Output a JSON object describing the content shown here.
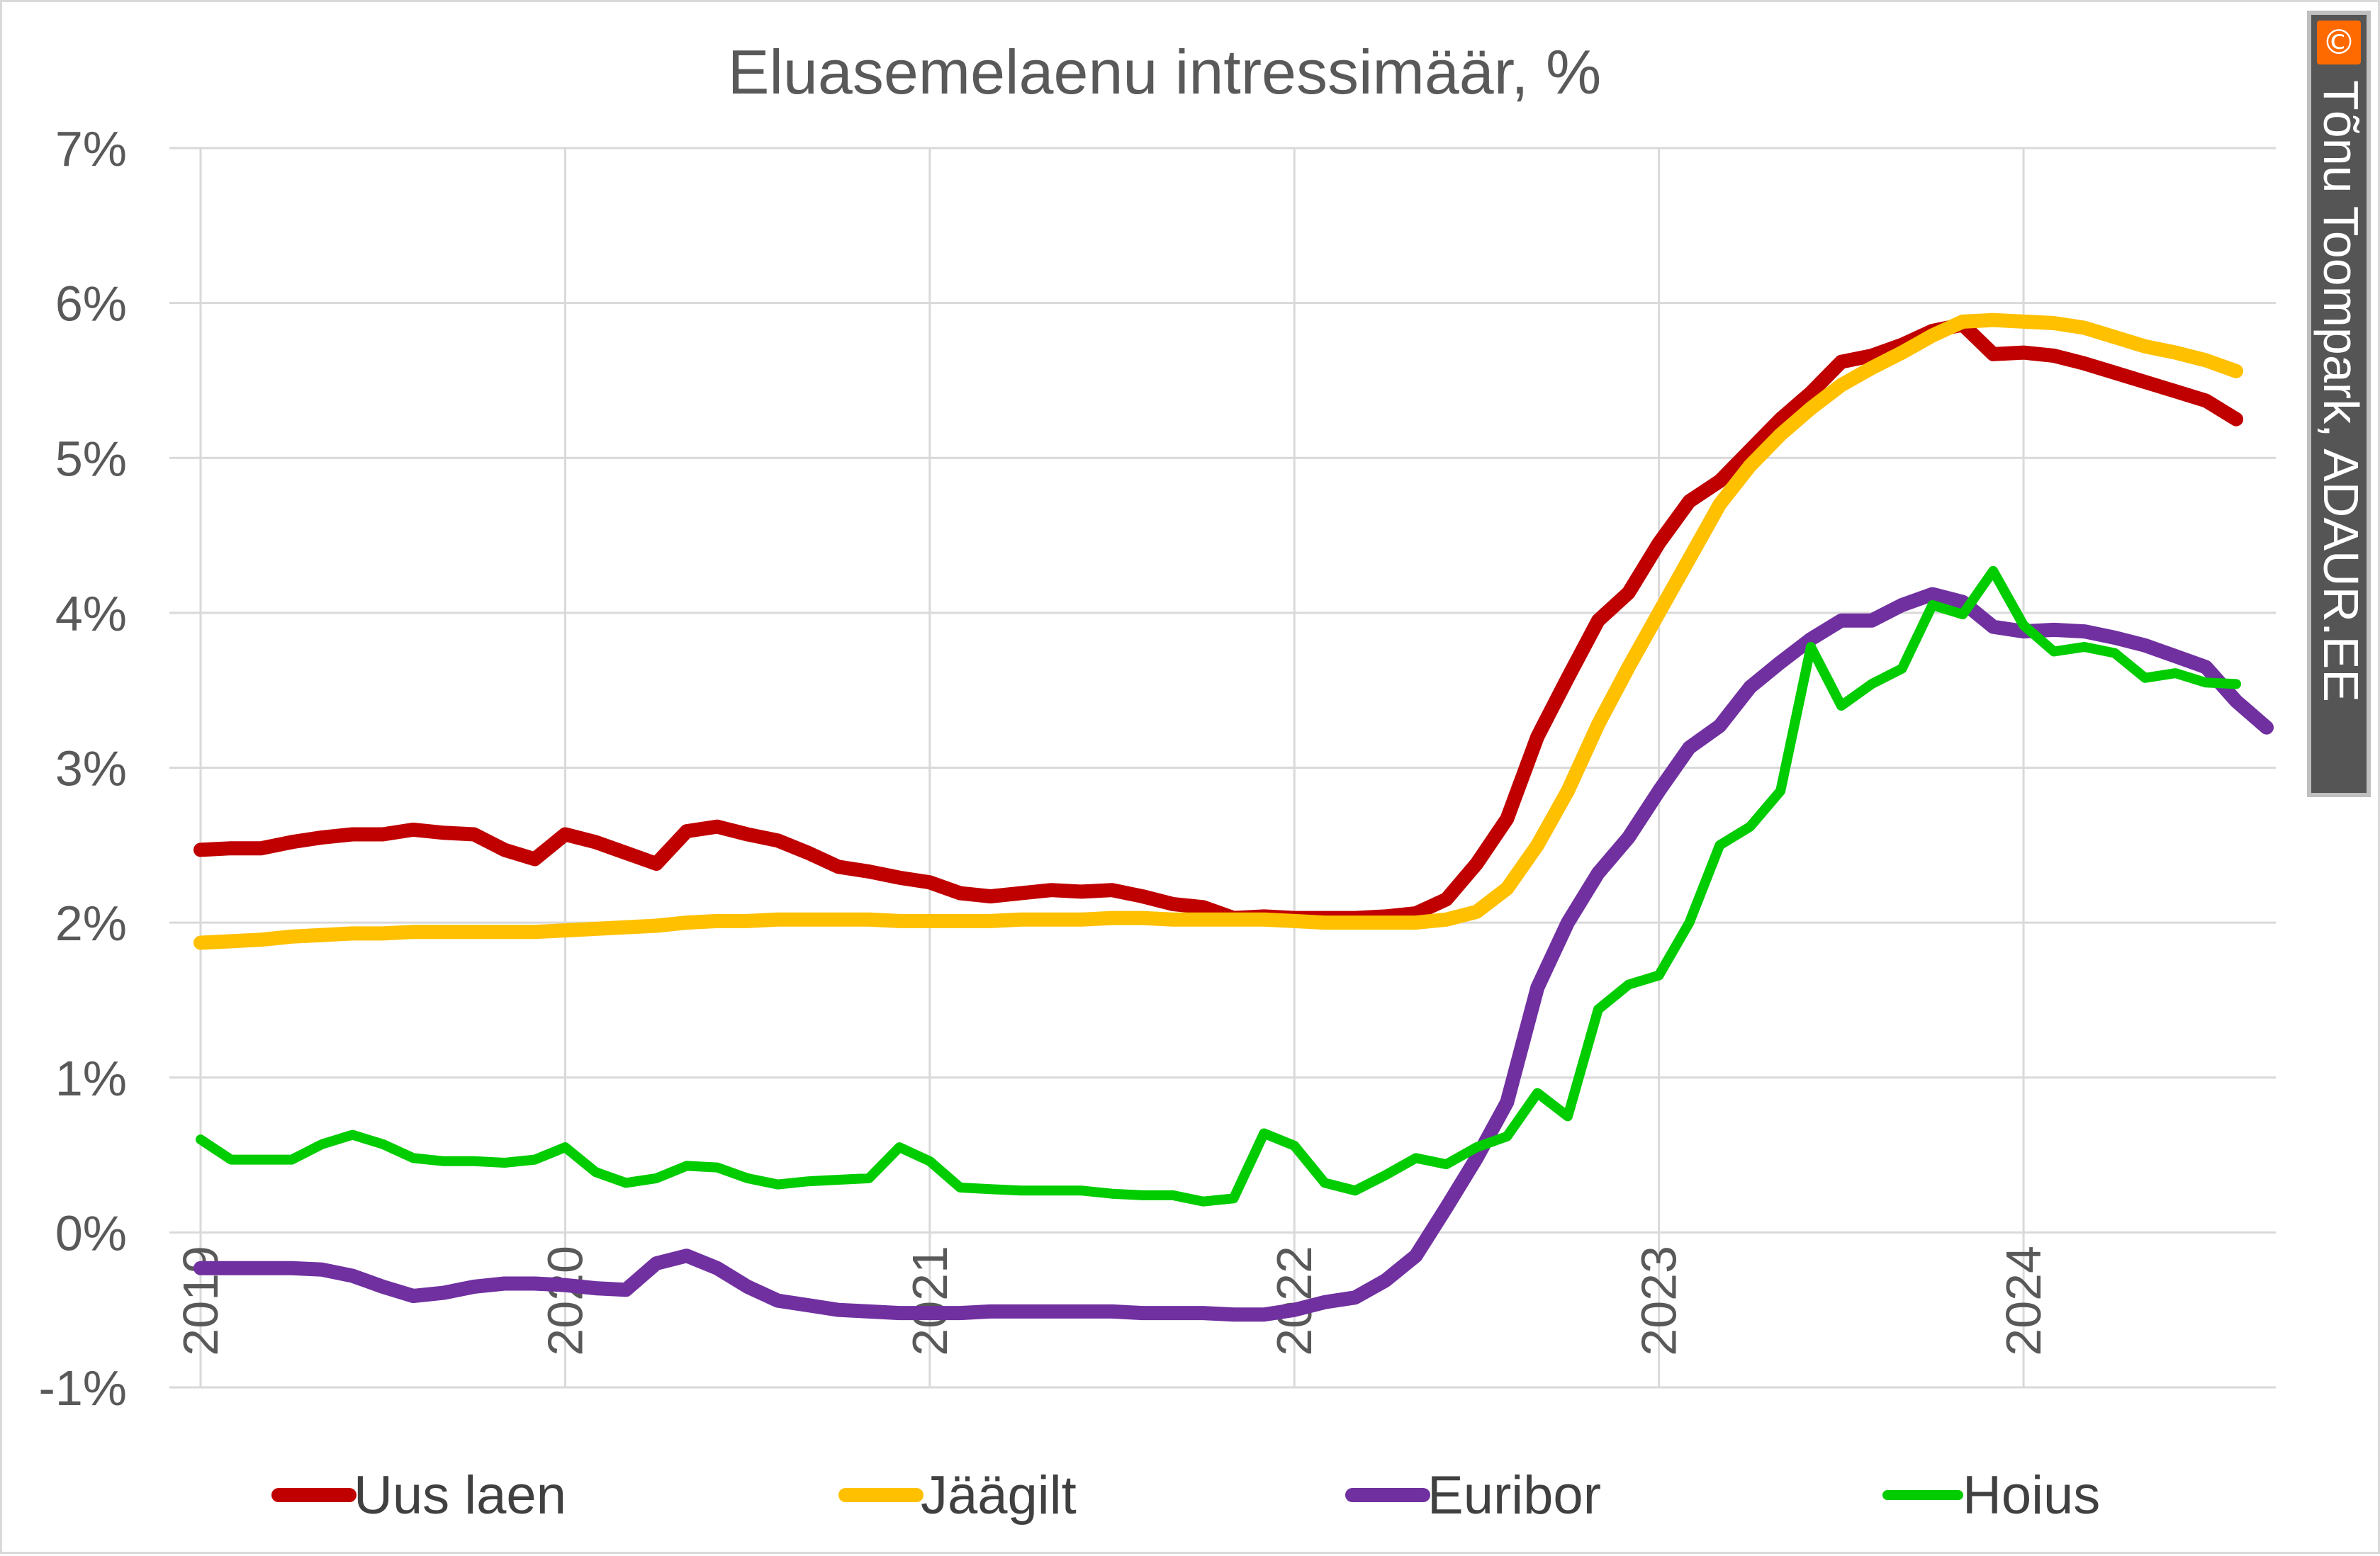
{
  "chart_data": {
    "type": "line",
    "title": "Eluasemelaenu intressimäär, %",
    "xlabel": "",
    "ylabel": "",
    "ylim": [
      -1,
      7
    ],
    "xlim": [
      "2019-01",
      "2024-09"
    ],
    "grid": true,
    "legend_position": "bottom",
    "y_ticks": [
      "7%",
      "6%",
      "5%",
      "4%",
      "3%",
      "2%",
      "1%",
      "0%",
      "-1%"
    ],
    "x_ticks": [
      "2019",
      "2020",
      "2021",
      "2022",
      "2023",
      "2024"
    ],
    "x": [
      "2019-01",
      "2019-02",
      "2019-03",
      "2019-04",
      "2019-05",
      "2019-06",
      "2019-07",
      "2019-08",
      "2019-09",
      "2019-10",
      "2019-11",
      "2019-12",
      "2020-01",
      "2020-02",
      "2020-03",
      "2020-04",
      "2020-05",
      "2020-06",
      "2020-07",
      "2020-08",
      "2020-09",
      "2020-10",
      "2020-11",
      "2020-12",
      "2021-01",
      "2021-02",
      "2021-03",
      "2021-04",
      "2021-05",
      "2021-06",
      "2021-07",
      "2021-08",
      "2021-09",
      "2021-10",
      "2021-11",
      "2021-12",
      "2022-01",
      "2022-02",
      "2022-03",
      "2022-04",
      "2022-05",
      "2022-06",
      "2022-07",
      "2022-08",
      "2022-09",
      "2022-10",
      "2022-11",
      "2022-12",
      "2023-01",
      "2023-02",
      "2023-03",
      "2023-04",
      "2023-05",
      "2023-06",
      "2023-07",
      "2023-08",
      "2023-09",
      "2023-10",
      "2023-11",
      "2023-12",
      "2024-01",
      "2024-02",
      "2024-03",
      "2024-04",
      "2024-05",
      "2024-06",
      "2024-07",
      "2024-08",
      "2024-09"
    ],
    "series": [
      {
        "name": "Uus laen",
        "color": "#c00000",
        "values": [
          2.47,
          2.48,
          2.48,
          2.52,
          2.55,
          2.57,
          2.57,
          2.6,
          2.58,
          2.57,
          2.47,
          2.41,
          2.57,
          2.52,
          2.45,
          2.38,
          2.59,
          2.62,
          2.57,
          2.53,
          2.45,
          2.36,
          2.33,
          2.29,
          2.26,
          2.19,
          2.17,
          2.19,
          2.21,
          2.2,
          2.21,
          2.17,
          2.12,
          2.1,
          2.03,
          2.04,
          2.03,
          2.03,
          2.03,
          2.04,
          2.06,
          2.15,
          2.38,
          2.67,
          3.2,
          3.58,
          3.95,
          4.13,
          4.45,
          4.72,
          4.85,
          5.05,
          5.25,
          5.42,
          5.62,
          5.66,
          5.73,
          5.82,
          5.86,
          5.67,
          5.68,
          5.66,
          5.61,
          5.55,
          5.49,
          5.43,
          5.37,
          5.25,
          null
        ]
      },
      {
        "name": "Jäägilt",
        "color": "#ffc000",
        "values": [
          1.87,
          1.88,
          1.89,
          1.91,
          1.92,
          1.93,
          1.93,
          1.94,
          1.94,
          1.94,
          1.94,
          1.94,
          1.95,
          1.96,
          1.97,
          1.98,
          2.0,
          2.01,
          2.01,
          2.02,
          2.02,
          2.02,
          2.02,
          2.01,
          2.01,
          2.01,
          2.01,
          2.02,
          2.02,
          2.02,
          2.03,
          2.03,
          2.02,
          2.02,
          2.02,
          2.02,
          2.01,
          2.0,
          2.0,
          2.0,
          2.0,
          2.02,
          2.07,
          2.22,
          2.5,
          2.85,
          3.28,
          3.65,
          4.0,
          4.35,
          4.7,
          4.95,
          5.15,
          5.32,
          5.47,
          5.58,
          5.68,
          5.79,
          5.88,
          5.89,
          5.88,
          5.87,
          5.84,
          5.78,
          5.72,
          5.68,
          5.63,
          5.56,
          null
        ]
      },
      {
        "name": "Euribor",
        "color": "#7030a0",
        "values": [
          -0.23,
          -0.23,
          -0.23,
          -0.23,
          -0.24,
          -0.28,
          -0.35,
          -0.41,
          -0.39,
          -0.35,
          -0.33,
          -0.33,
          -0.34,
          -0.36,
          -0.37,
          -0.2,
          -0.15,
          -0.23,
          -0.35,
          -0.44,
          -0.47,
          -0.5,
          -0.51,
          -0.52,
          -0.52,
          -0.52,
          -0.51,
          -0.51,
          -0.51,
          -0.51,
          -0.51,
          -0.52,
          -0.52,
          -0.52,
          -0.53,
          -0.53,
          -0.5,
          -0.45,
          -0.42,
          -0.31,
          -0.15,
          0.16,
          0.48,
          0.84,
          1.58,
          2.0,
          2.32,
          2.55,
          2.85,
          3.13,
          3.27,
          3.52,
          3.68,
          3.83,
          3.95,
          3.95,
          4.05,
          4.12,
          4.07,
          3.91,
          3.88,
          3.89,
          3.88,
          3.84,
          3.79,
          3.72,
          3.65,
          3.43,
          3.26
        ]
      },
      {
        "name": "Hoius",
        "color": "#00cc00",
        "values": [
          0.6,
          0.47,
          0.47,
          0.47,
          0.57,
          0.63,
          0.57,
          0.48,
          0.46,
          0.46,
          0.45,
          0.47,
          0.55,
          0.39,
          0.32,
          0.35,
          0.43,
          0.42,
          0.35,
          0.31,
          0.33,
          0.34,
          0.35,
          0.55,
          0.46,
          0.29,
          0.28,
          0.27,
          0.27,
          0.27,
          0.25,
          0.24,
          0.24,
          0.2,
          0.22,
          0.64,
          0.56,
          0.32,
          0.27,
          0.37,
          0.48,
          0.44,
          0.55,
          0.62,
          0.9,
          0.75,
          1.44,
          1.6,
          1.66,
          2.0,
          2.5,
          2.62,
          2.85,
          3.78,
          3.4,
          3.54,
          3.64,
          4.05,
          3.99,
          4.27,
          3.92,
          3.75,
          3.78,
          3.74,
          3.58,
          3.61,
          3.55,
          3.54,
          null
        ]
      }
    ]
  },
  "watermark": {
    "icon_glyph": "©",
    "text": "Tõnu Toompark, ADAUR.EE"
  }
}
